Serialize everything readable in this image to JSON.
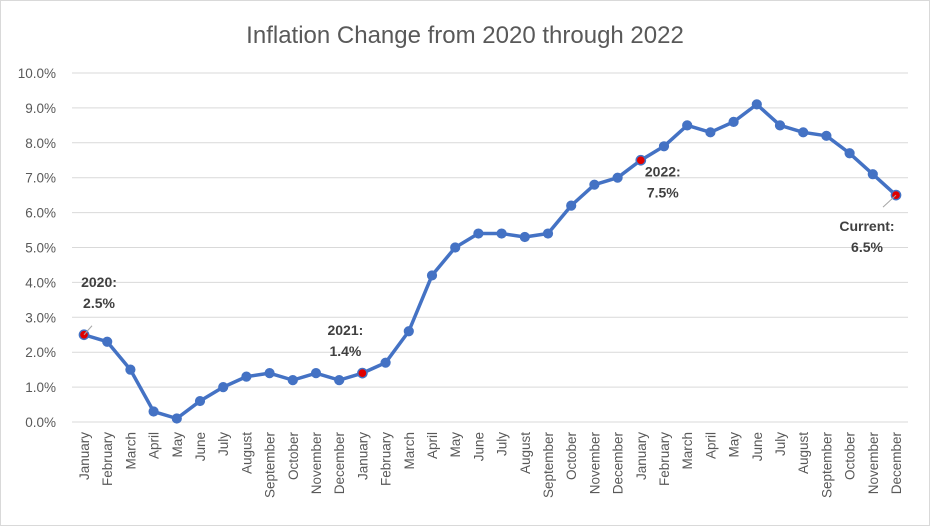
{
  "chart_data": {
    "type": "line",
    "title": "Inflation Change from 2020 through 2022",
    "xlabel": "",
    "ylabel": "",
    "ylim": [
      0,
      10
    ],
    "y_tick_labels": [
      "0.0%",
      "1.0%",
      "2.0%",
      "3.0%",
      "4.0%",
      "5.0%",
      "6.0%",
      "7.0%",
      "8.0%",
      "9.0%",
      "10.0%"
    ],
    "grid": true,
    "legend": "none",
    "line_color": "#4472C4",
    "highlight_color": "#E00000",
    "categories": [
      "January",
      "February",
      "March",
      "April",
      "May",
      "June",
      "July",
      "August",
      "September",
      "October",
      "November",
      "December",
      "January",
      "February",
      "March",
      "April",
      "May",
      "June",
      "July",
      "August",
      "September",
      "October",
      "November",
      "December",
      "January",
      "February",
      "March",
      "April",
      "May",
      "June",
      "July",
      "August",
      "September",
      "October",
      "November",
      "December"
    ],
    "series": [
      {
        "values": [
          2.5,
          2.3,
          1.5,
          0.3,
          0.1,
          0.6,
          1.0,
          1.3,
          1.4,
          1.2,
          1.4,
          1.2,
          1.4,
          1.7,
          2.6,
          4.2,
          5.0,
          5.4,
          5.4,
          5.3,
          5.4,
          6.2,
          6.8,
          7.0,
          7.5,
          7.9,
          8.5,
          8.3,
          8.6,
          9.1,
          8.5,
          8.3,
          8.2,
          7.7,
          7.1,
          6.5
        ]
      }
    ],
    "annotations": [
      {
        "index": 0,
        "lines": [
          "2020:",
          "2.5%"
        ]
      },
      {
        "index": 12,
        "lines": [
          "2021:",
          "1.4%"
        ]
      },
      {
        "index": 24,
        "lines": [
          "2022:",
          "7.5%"
        ]
      },
      {
        "index": 35,
        "lines": [
          "Current:",
          "6.5%"
        ]
      }
    ]
  }
}
